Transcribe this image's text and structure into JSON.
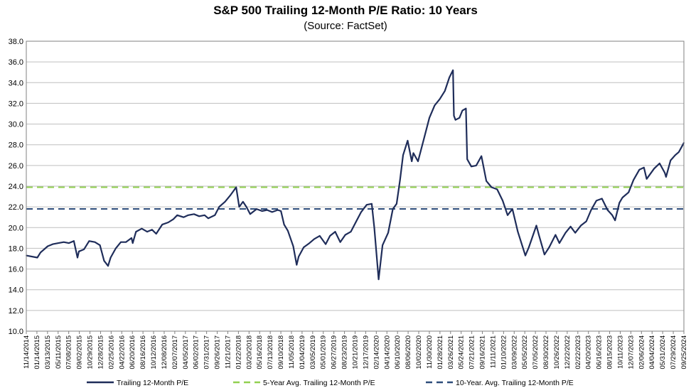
{
  "chart_data": {
    "type": "line",
    "title": "S&P 500 Trailing 12-Month P/E Ratio: 10 Years",
    "subtitle": "(Source: FactSet)",
    "xlabel": "",
    "ylabel": "",
    "ylim": [
      10.0,
      38.0
    ],
    "ystep": 2.0,
    "grid": true,
    "legend_position": "bottom",
    "x_tick_labels": [
      "11/14/2014",
      "01/14/2015",
      "03/13/2015",
      "05/11/2015",
      "07/08/2015",
      "09/02/2015",
      "10/29/2015",
      "12/28/2015",
      "02/25/2016",
      "04/22/2016",
      "06/20/2016",
      "08/16/2016",
      "10/12/2016",
      "12/08/2016",
      "02/07/2017",
      "04/05/2017",
      "06/02/2017",
      "07/31/2017",
      "09/26/2017",
      "11/21/2017",
      "01/22/2018",
      "03/20/2018",
      "05/16/2018",
      "07/13/2018",
      "09/10/2018",
      "11/05/2018",
      "01/04/2019",
      "03/05/2019",
      "05/01/2019",
      "06/27/2019",
      "08/23/2019",
      "10/21/2019",
      "12/17/2019",
      "02/14/2020",
      "04/14/2020",
      "06/10/2020",
      "08/06/2020",
      "10/02/2020",
      "11/30/2020",
      "01/28/2021",
      "03/26/2021",
      "05/24/2021",
      "07/21/2021",
      "09/16/2021",
      "11/11/2021",
      "01/10/2022",
      "03/09/2022",
      "05/05/2022",
      "07/05/2022",
      "08/30/2022",
      "10/26/2022",
      "12/22/2022",
      "02/22/2023",
      "04/20/2023",
      "06/16/2023",
      "08/15/2023",
      "10/11/2023",
      "12/07/2023",
      "02/06/2024",
      "04/04/2024",
      "05/31/2024",
      "07/29/2024",
      "09/25/2024"
    ],
    "series": [
      {
        "name": "Trailing 12-Month P/E",
        "color": "#1f2d5a",
        "style": "solid",
        "points": [
          [
            "11/14/2014",
            17.3
          ],
          [
            "01/14/2015",
            17.1
          ],
          [
            "02/01/2015",
            17.6
          ],
          [
            "03/13/2015",
            18.2
          ],
          [
            "04/10/2015",
            18.4
          ],
          [
            "05/11/2015",
            18.5
          ],
          [
            "06/10/2015",
            18.6
          ],
          [
            "07/08/2015",
            18.5
          ],
          [
            "08/05/2015",
            18.7
          ],
          [
            "08/25/2015",
            17.1
          ],
          [
            "09/02/2015",
            17.7
          ],
          [
            "09/30/2015",
            17.9
          ],
          [
            "10/29/2015",
            18.7
          ],
          [
            "11/30/2015",
            18.6
          ],
          [
            "12/28/2015",
            18.3
          ],
          [
            "01/20/2016",
            16.8
          ],
          [
            "02/11/2016",
            16.3
          ],
          [
            "02/25/2016",
            17.1
          ],
          [
            "03/25/2016",
            18.0
          ],
          [
            "04/22/2016",
            18.6
          ],
          [
            "05/20/2016",
            18.6
          ],
          [
            "06/20/2016",
            19.0
          ],
          [
            "06/27/2016",
            18.5
          ],
          [
            "07/15/2016",
            19.6
          ],
          [
            "08/16/2016",
            19.9
          ],
          [
            "09/15/2016",
            19.6
          ],
          [
            "10/12/2016",
            19.8
          ],
          [
            "11/04/2016",
            19.4
          ],
          [
            "12/08/2016",
            20.3
          ],
          [
            "01/10/2017",
            20.5
          ],
          [
            "02/07/2017",
            20.8
          ],
          [
            "03/01/2017",
            21.2
          ],
          [
            "04/05/2017",
            21.0
          ],
          [
            "05/01/2017",
            21.2
          ],
          [
            "06/02/2017",
            21.3
          ],
          [
            "07/01/2017",
            21.1
          ],
          [
            "07/31/2017",
            21.2
          ],
          [
            "08/20/2017",
            20.9
          ],
          [
            "09/26/2017",
            21.2
          ],
          [
            "10/20/2017",
            22.0
          ],
          [
            "11/21/2017",
            22.5
          ],
          [
            "12/20/2017",
            23.1
          ],
          [
            "01/22/2018",
            23.9
          ],
          [
            "02/08/2018",
            22.0
          ],
          [
            "03/01/2018",
            22.5
          ],
          [
            "03/20/2018",
            22.0
          ],
          [
            "04/10/2018",
            21.3
          ],
          [
            "05/16/2018",
            21.8
          ],
          [
            "06/15/2018",
            21.6
          ],
          [
            "07/13/2018",
            21.7
          ],
          [
            "08/10/2018",
            21.5
          ],
          [
            "09/10/2018",
            21.7
          ],
          [
            "09/28/2018",
            21.6
          ],
          [
            "10/15/2018",
            20.3
          ],
          [
            "11/05/2018",
            19.7
          ],
          [
            "12/05/2018",
            18.2
          ],
          [
            "12/24/2018",
            16.4
          ],
          [
            "01/04/2019",
            17.2
          ],
          [
            "02/01/2019",
            18.1
          ],
          [
            "03/05/2019",
            18.5
          ],
          [
            "04/01/2019",
            18.9
          ],
          [
            "05/01/2019",
            19.2
          ],
          [
            "06/03/2019",
            18.4
          ],
          [
            "06/27/2019",
            19.2
          ],
          [
            "07/26/2019",
            19.6
          ],
          [
            "08/23/2019",
            18.6
          ],
          [
            "09/20/2019",
            19.3
          ],
          [
            "10/21/2019",
            19.6
          ],
          [
            "11/20/2019",
            20.6
          ],
          [
            "12/17/2019",
            21.5
          ],
          [
            "01/17/2020",
            22.2
          ],
          [
            "02/14/2020",
            22.3
          ],
          [
            "02/28/2020",
            20.0
          ],
          [
            "03/23/2020",
            15.0
          ],
          [
            "04/14/2020",
            18.3
          ],
          [
            "05/15/2020",
            19.5
          ],
          [
            "06/10/2020",
            21.8
          ],
          [
            "07/01/2020",
            22.3
          ],
          [
            "07/20/2020",
            24.6
          ],
          [
            "08/06/2020",
            27.0
          ],
          [
            "08/31/2020",
            28.4
          ],
          [
            "09/23/2020",
            26.4
          ],
          [
            "10/02/2020",
            27.2
          ],
          [
            "10/28/2020",
            26.4
          ],
          [
            "11/30/2020",
            28.6
          ],
          [
            "12/30/2020",
            30.6
          ],
          [
            "01/28/2021",
            31.8
          ],
          [
            "02/25/2021",
            32.4
          ],
          [
            "03/26/2021",
            33.2
          ],
          [
            "04/20/2021",
            34.5
          ],
          [
            "05/10/2021",
            35.2
          ],
          [
            "05/15/2021",
            30.8
          ],
          [
            "05/24/2021",
            30.4
          ],
          [
            "06/15/2021",
            30.6
          ],
          [
            "07/01/2021",
            31.3
          ],
          [
            "07/21/2021",
            31.5
          ],
          [
            "07/28/2021",
            26.6
          ],
          [
            "08/20/2021",
            25.9
          ],
          [
            "09/16/2021",
            26.0
          ],
          [
            "10/15/2021",
            26.9
          ],
          [
            "11/11/2021",
            24.5
          ],
          [
            "12/10/2021",
            23.9
          ],
          [
            "01/10/2022",
            23.7
          ],
          [
            "02/10/2022",
            22.6
          ],
          [
            "03/09/2022",
            21.2
          ],
          [
            "04/05/2022",
            21.8
          ],
          [
            "05/05/2022",
            19.6
          ],
          [
            "06/16/2022",
            17.3
          ],
          [
            "07/05/2022",
            18.1
          ],
          [
            "08/16/2022",
            20.2
          ],
          [
            "08/30/2022",
            19.3
          ],
          [
            "09/30/2022",
            17.4
          ],
          [
            "10/26/2022",
            18.1
          ],
          [
            "11/30/2022",
            19.3
          ],
          [
            "12/22/2022",
            18.5
          ],
          [
            "01/25/2023",
            19.5
          ],
          [
            "02/22/2023",
            20.1
          ],
          [
            "03/20/2023",
            19.5
          ],
          [
            "04/20/2023",
            20.2
          ],
          [
            "05/20/2023",
            20.6
          ],
          [
            "06/16/2023",
            21.7
          ],
          [
            "07/15/2023",
            22.6
          ],
          [
            "08/15/2023",
            22.8
          ],
          [
            "09/15/2023",
            21.7
          ],
          [
            "10/11/2023",
            21.2
          ],
          [
            "10/27/2023",
            20.7
          ],
          [
            "11/20/2023",
            22.4
          ],
          [
            "12/07/2023",
            22.9
          ],
          [
            "01/10/2024",
            23.4
          ],
          [
            "02/06/2024",
            24.6
          ],
          [
            "03/10/2024",
            25.6
          ],
          [
            "04/04/2024",
            25.8
          ],
          [
            "04/19/2024",
            24.7
          ],
          [
            "05/31/2024",
            25.7
          ],
          [
            "06/30/2024",
            26.2
          ],
          [
            "07/29/2024",
            25.3
          ],
          [
            "08/05/2024",
            24.9
          ],
          [
            "08/30/2024",
            26.5
          ],
          [
            "09/25/2024",
            27.0
          ],
          [
            "10/15/2024",
            27.3
          ],
          [
            "11/06/2024",
            28.0
          ],
          [
            "11/12/2024",
            28.2
          ]
        ]
      },
      {
        "name": "5-Year Avg. Trailing 12-Month P/E",
        "color": "#92d050",
        "style": "dashed",
        "value": 23.9
      },
      {
        "name": "10-Year. Avg. Trailing 12-Month P/E",
        "color": "#2e4d7b",
        "style": "dashed",
        "value": 21.8
      }
    ]
  }
}
